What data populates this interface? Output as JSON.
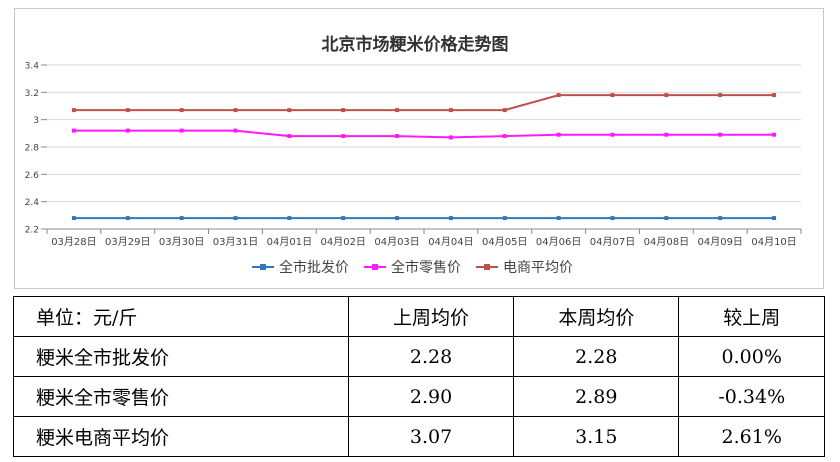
{
  "chart_data": {
    "type": "line",
    "title": "北京市场粳米价格走势图",
    "xlabel": "",
    "ylabel": "",
    "ylim": [
      2.2,
      3.4
    ],
    "yticks": [
      "2.2",
      "2.4",
      "2.6",
      "2.8",
      "3",
      "3.2",
      "3.4"
    ],
    "grid": true,
    "legend_position": "bottom",
    "categories": [
      "03月28日",
      "03月29日",
      "03月30日",
      "03月31日",
      "04月01日",
      "04月02日",
      "04月03日",
      "04月04日",
      "04月05日",
      "04月06日",
      "04月07日",
      "04月08日",
      "04月09日",
      "04月10日"
    ],
    "series": [
      {
        "name": "全市批发价",
        "color": "#2f78bd",
        "values": [
          2.28,
          2.28,
          2.28,
          2.28,
          2.28,
          2.28,
          2.28,
          2.28,
          2.28,
          2.28,
          2.28,
          2.28,
          2.28,
          2.28
        ]
      },
      {
        "name": "全市零售价",
        "color": "#ff19ff",
        "values": [
          2.92,
          2.92,
          2.92,
          2.92,
          2.88,
          2.88,
          2.88,
          2.87,
          2.88,
          2.89,
          2.89,
          2.89,
          2.89,
          2.89
        ]
      },
      {
        "name": "电商平均价",
        "color": "#c0504d",
        "values": [
          3.07,
          3.07,
          3.07,
          3.07,
          3.07,
          3.07,
          3.07,
          3.07,
          3.07,
          3.18,
          3.18,
          3.18,
          3.18,
          3.18
        ]
      }
    ]
  },
  "table": {
    "header": [
      "单位：元/斤",
      "上周均价",
      "本周均价",
      "较上周"
    ],
    "rows": [
      [
        "粳米全市批发价",
        "2.28",
        "2.28",
        "0.00%"
      ],
      [
        "粳米全市零售价",
        "2.90",
        "2.89",
        "-0.34%"
      ],
      [
        "粳米电商平均价",
        "3.07",
        "3.15",
        "2.61%"
      ]
    ]
  }
}
